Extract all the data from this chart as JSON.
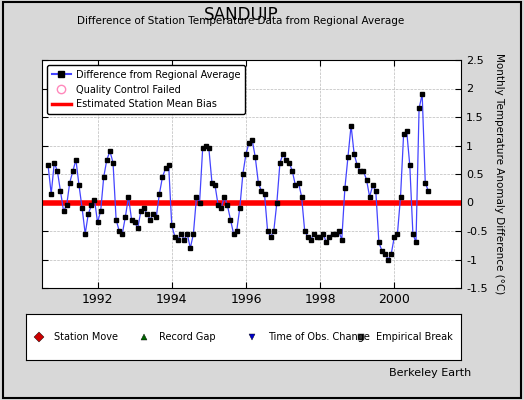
{
  "title": "SANDUIP",
  "subtitle": "Difference of Station Temperature Data from Regional Average",
  "ylabel": "Monthly Temperature Anomaly Difference (°C)",
  "bias_value": 0.0,
  "ylim": [
    -1.5,
    2.5
  ],
  "xlim": [
    1990.5,
    2001.8
  ],
  "xticks": [
    1992,
    1994,
    1996,
    1998,
    2000
  ],
  "yticks": [
    -1.5,
    -1.0,
    -0.5,
    0.0,
    0.5,
    1.0,
    1.5,
    2.0,
    2.5
  ],
  "background_color": "#d8d8d8",
  "plot_bg_color": "#ffffff",
  "line_color": "#4444ff",
  "marker_color": "#000000",
  "bias_color": "#ff0000",
  "watermark": "Berkeley Earth",
  "time_series": [
    0.65,
    0.15,
    0.7,
    0.55,
    0.2,
    -0.15,
    -0.05,
    0.35,
    0.55,
    0.75,
    0.3,
    -0.1,
    -0.55,
    -0.2,
    -0.05,
    0.05,
    -0.35,
    -0.15,
    0.45,
    0.75,
    0.9,
    0.7,
    -0.3,
    -0.5,
    -0.55,
    -0.25,
    0.1,
    -0.3,
    -0.35,
    -0.45,
    -0.15,
    -0.1,
    -0.2,
    -0.3,
    -0.2,
    -0.25,
    0.15,
    0.45,
    0.6,
    0.65,
    -0.4,
    -0.6,
    -0.65,
    -0.55,
    -0.65,
    -0.55,
    -0.8,
    -0.55,
    0.1,
    0.0,
    0.95,
    1.0,
    0.95,
    0.35,
    0.3,
    -0.05,
    -0.1,
    0.1,
    -0.05,
    -0.3,
    -0.55,
    -0.5,
    -0.1,
    0.5,
    0.85,
    1.05,
    1.1,
    0.8,
    0.35,
    0.2,
    0.15,
    -0.5,
    -0.6,
    -0.5,
    0.0,
    0.7,
    0.85,
    0.75,
    0.7,
    0.55,
    0.3,
    0.35,
    0.1,
    -0.5,
    -0.6,
    -0.65,
    -0.55,
    -0.6,
    -0.6,
    -0.55,
    -0.7,
    -0.6,
    -0.55,
    -0.55,
    -0.5,
    -0.65,
    0.25,
    0.8,
    1.35,
    0.85,
    0.65,
    0.55,
    0.55,
    0.4,
    0.1,
    0.3,
    0.2,
    -0.7,
    -0.85,
    -0.9,
    -1.0,
    -0.9,
    -0.6,
    -0.55,
    0.1,
    1.2,
    1.25,
    0.65,
    -0.55,
    -0.7,
    1.65,
    1.9,
    0.35,
    0.2
  ],
  "start_year": 1990,
  "start_month": 9
}
